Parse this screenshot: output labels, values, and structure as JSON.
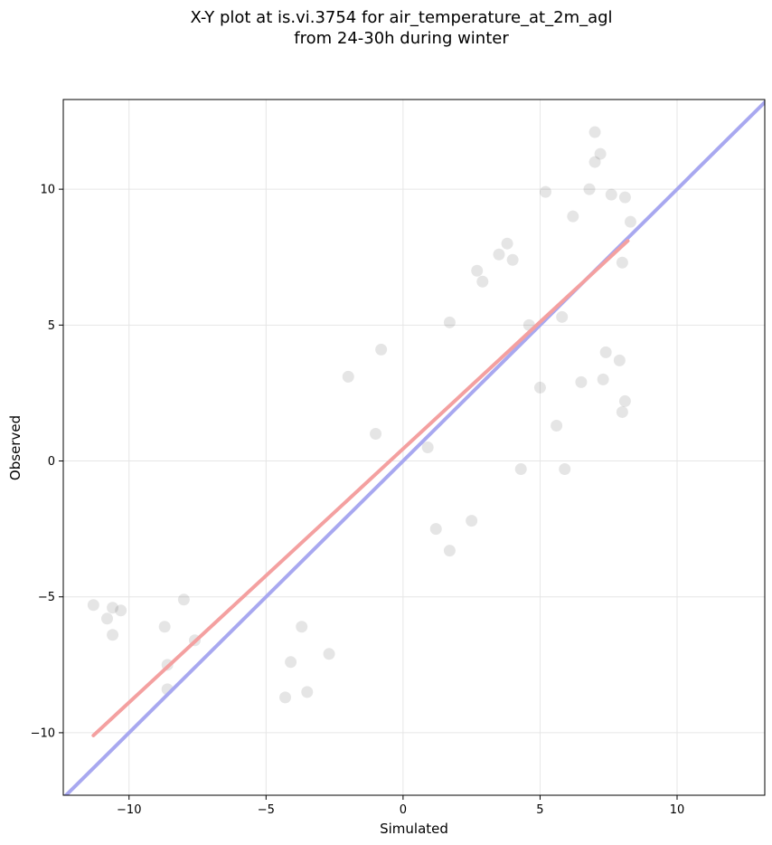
{
  "chart_data": {
    "type": "scatter",
    "title_lines": [
      "X-Y plot at is.vi.3754 for air_temperature_at_2m_agl",
      "from 24-30h during winter"
    ],
    "xlabel": "Simulated",
    "ylabel": "Observed",
    "xlim": [
      -12.4,
      13.2
    ],
    "ylim": [
      -12.3,
      13.3
    ],
    "xticks": [
      -10,
      -5,
      0,
      5,
      10
    ],
    "yticks": [
      -10,
      -5,
      0,
      5,
      10
    ],
    "xtick_labels": [
      "−10",
      "−5",
      "0",
      "5",
      "10"
    ],
    "ytick_labels": [
      "−10",
      "−5",
      "0",
      "5",
      "10"
    ],
    "grid": true,
    "point_color": "#000000",
    "point_alpha": 0.1,
    "sample_points": [
      [
        -11.3,
        -5.3
      ],
      [
        -10.8,
        -5.8
      ],
      [
        -10.6,
        -5.4
      ],
      [
        -10.6,
        -6.4
      ],
      [
        -10.3,
        -5.5
      ],
      [
        -8.7,
        -6.1
      ],
      [
        -8.6,
        -7.5
      ],
      [
        -8.6,
        -8.4
      ],
      [
        -8.0,
        -5.1
      ],
      [
        -7.6,
        -6.6
      ],
      [
        -4.3,
        -8.7
      ],
      [
        -3.5,
        -8.5
      ],
      [
        -4.1,
        -7.4
      ],
      [
        -3.7,
        -6.1
      ],
      [
        -2.7,
        -7.1
      ],
      [
        -2.0,
        3.1
      ],
      [
        -1.0,
        1.0
      ],
      [
        -0.8,
        4.1
      ],
      [
        0.9,
        0.5
      ],
      [
        1.2,
        -2.5
      ],
      [
        1.7,
        -3.3
      ],
      [
        2.5,
        -2.2
      ],
      [
        4.3,
        -0.3
      ],
      [
        5.2,
        9.9
      ],
      [
        5.9,
        -0.3
      ],
      [
        7.0,
        12.1
      ],
      [
        7.2,
        11.3
      ],
      [
        7.0,
        11.0
      ],
      [
        6.8,
        10.0
      ],
      [
        6.2,
        9.0
      ],
      [
        7.6,
        9.8
      ],
      [
        8.1,
        9.7
      ],
      [
        8.3,
        8.8
      ],
      [
        8.0,
        7.3
      ],
      [
        7.4,
        4.0
      ],
      [
        7.9,
        3.7
      ],
      [
        8.1,
        2.2
      ],
      [
        8.0,
        1.8
      ],
      [
        7.3,
        3.0
      ],
      [
        6.5,
        2.9
      ],
      [
        5.6,
        1.3
      ],
      [
        5.0,
        2.7
      ],
      [
        4.6,
        5.0
      ],
      [
        5.8,
        5.3
      ],
      [
        4.0,
        7.4
      ],
      [
        3.5,
        7.6
      ],
      [
        3.8,
        8.0
      ],
      [
        2.7,
        7.0
      ],
      [
        2.9,
        6.6
      ],
      [
        1.7,
        5.1
      ]
    ],
    "regression_line": {
      "x": [
        -11.3,
        8.2
      ],
      "y": [
        -10.1,
        8.1
      ],
      "color": "#f4a0a0"
    },
    "identity_line": {
      "x": [
        -12.4,
        13.2
      ],
      "y": [
        -12.4,
        13.2
      ],
      "color": "#a8a8f0"
    }
  }
}
